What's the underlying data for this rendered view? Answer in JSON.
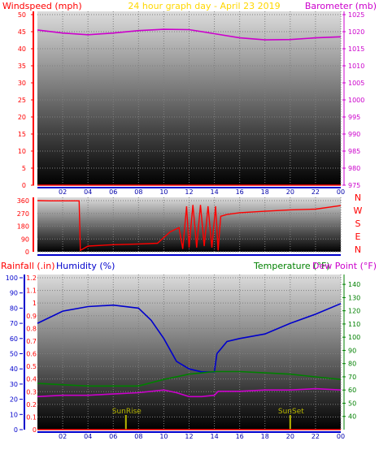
{
  "header": {
    "left_label": "Windspeed (mph)",
    "center_label": "24 hour graph day - April 23 2019",
    "right_label": "Barometer (mb)"
  },
  "footer_labels": {
    "rainfall": "Rainfall (.in)",
    "humidity": "Humidity (%)",
    "temperature": "Temperature (°F)",
    "dewpoint": "Dew Point (°F)"
  },
  "colors": {
    "windspeed": "#ff0000",
    "barometer": "#cc00cc",
    "title": "#ffd700",
    "direction": "#ff0000",
    "humidity": "#0000cc",
    "temperature": "#008000",
    "dewpoint": "#cc00cc",
    "rainfall": "#ff0000",
    "rain_axis": "#0000cc",
    "sun_marker": "#b8b800"
  },
  "chart_data": [
    {
      "type": "line",
      "title": "24 hour graph day - April 23 2019",
      "x_ticks": [
        "02",
        "04",
        "06",
        "08",
        "10",
        "12",
        "14",
        "16",
        "18",
        "20",
        "22",
        "00"
      ],
      "left_axis": {
        "label": "Windspeed (mph)",
        "range": [
          0,
          50
        ],
        "ticks": [
          "0",
          "5",
          "10",
          "15",
          "20",
          "25",
          "30",
          "35",
          "40",
          "45",
          "50"
        ]
      },
      "right_axis": {
        "label": "Barometer (mb)",
        "range": [
          975,
          1025
        ],
        "ticks": [
          "975",
          "980",
          "985",
          "990",
          "995",
          "1000",
          "1005",
          "1010",
          "1015",
          "1020",
          "1025"
        ]
      },
      "series": [
        {
          "name": "Barometer (mb)",
          "axis": "right",
          "x": [
            0,
            2,
            4,
            6,
            8,
            10,
            12,
            14,
            16,
            18,
            20,
            22,
            24
          ],
          "values": [
            1020.5,
            1019.6,
            1019.1,
            1019.6,
            1020.3,
            1020.7,
            1020.6,
            1019.4,
            1018.2,
            1017.6,
            1017.7,
            1018.2,
            1018.5
          ]
        },
        {
          "name": "Windspeed (mph)",
          "axis": "left",
          "x": [
            0,
            24
          ],
          "values": [
            0,
            0
          ]
        }
      ]
    },
    {
      "type": "line",
      "x_ticks": [
        "02",
        "04",
        "06",
        "08",
        "10",
        "12",
        "14",
        "16",
        "18",
        "20",
        "22",
        "00"
      ],
      "left_axis": {
        "range": [
          0,
          360
        ],
        "ticks": [
          "0",
          "90",
          "180",
          "270",
          "360"
        ]
      },
      "compass_labels": [
        "N",
        "W",
        "S",
        "E",
        "N"
      ],
      "series": [
        {
          "name": "Wind direction",
          "x": [
            0,
            1,
            2,
            3.3,
            3.4,
            4,
            6,
            8,
            9.5,
            10,
            10.5,
            11.2,
            11.5,
            11.8,
            12,
            12.3,
            12.6,
            12.9,
            13.2,
            13.5,
            13.8,
            14.1,
            14.3,
            14.5,
            15,
            16,
            18,
            20,
            22,
            24
          ],
          "values": [
            360,
            358,
            358,
            358,
            10,
            40,
            50,
            55,
            60,
            100,
            140,
            170,
            20,
            320,
            30,
            330,
            30,
            330,
            40,
            320,
            30,
            320,
            10,
            250,
            262,
            275,
            285,
            295,
            300,
            325
          ]
        }
      ]
    },
    {
      "type": "line",
      "x_ticks": [
        "02",
        "04",
        "06",
        "08",
        "10",
        "12",
        "14",
        "16",
        "18",
        "20",
        "22",
        "00"
      ],
      "left_axis": {
        "label": "Rainfall (.in)",
        "range": [
          0,
          1.2
        ],
        "ticks": [
          "0",
          "0.1",
          "0.2",
          "0.3",
          "0.4",
          "0.5",
          "0.6",
          "0.7",
          "0.8",
          "0.9",
          "1",
          "1.1",
          "1.2"
        ]
      },
      "humidity_axis": {
        "label": "Humidity (%)",
        "range": [
          0,
          100
        ],
        "ticks": [
          "0",
          "10",
          "20",
          "30",
          "40",
          "50",
          "60",
          "70",
          "80",
          "90",
          "100"
        ]
      },
      "right_axis": {
        "label": "Temperature (°F)",
        "range": [
          30,
          145
        ],
        "ticks": [
          "40",
          "50",
          "60",
          "70",
          "80",
          "90",
          "100",
          "110",
          "120",
          "130",
          "140"
        ]
      },
      "annotations": [
        {
          "label": "SunRise",
          "x": 7
        },
        {
          "label": "SunSet",
          "x": 20
        }
      ],
      "series": [
        {
          "name": "Humidity (%)",
          "axis": "humidity",
          "x": [
            0,
            2,
            4,
            6,
            8,
            9,
            10,
            11,
            12,
            13,
            14,
            14.2,
            15,
            16,
            18,
            20,
            22,
            24
          ],
          "values": [
            70,
            78,
            81,
            82,
            80,
            72,
            60,
            45,
            40,
            38,
            38,
            50,
            58,
            60,
            63,
            70,
            76,
            83
          ]
        },
        {
          "name": "Temperature (°F)",
          "axis": "right",
          "x": [
            0,
            2,
            4,
            6,
            8,
            10,
            12,
            14,
            16,
            18,
            20,
            22,
            24
          ],
          "values": [
            65,
            64,
            63,
            63,
            63,
            68,
            72,
            74,
            74,
            73,
            72,
            70,
            68
          ]
        },
        {
          "name": "Dew Point (°F)",
          "axis": "right",
          "x": [
            0,
            2,
            4,
            6,
            8,
            10,
            11,
            12,
            13,
            14,
            14.3,
            16,
            18,
            20,
            22,
            24
          ],
          "values": [
            55,
            56,
            56,
            57,
            58,
            60,
            58,
            55,
            55,
            56,
            59,
            59,
            60,
            60,
            61,
            60
          ]
        },
        {
          "name": "Rainfall (.in)",
          "axis": "left",
          "x": [
            0,
            24
          ],
          "values": [
            0,
            0
          ]
        }
      ]
    }
  ]
}
